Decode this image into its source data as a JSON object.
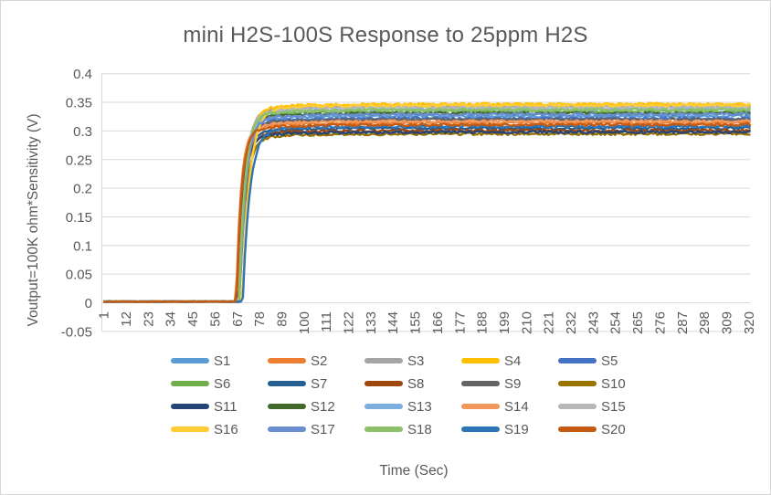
{
  "chart_data": {
    "type": "line",
    "title": "mini H2S-100S Response to 25ppm H2S",
    "xlabel": "Time (Sec)",
    "ylabel": "Voutput=100K ohm*Sensitivity (V)",
    "grid": true,
    "legend_position": "bottom",
    "n_points": 321,
    "x_axis": {
      "min": 1,
      "max": 320,
      "tick_step": 11,
      "ticks": [
        "1",
        "12",
        "23",
        "34",
        "45",
        "56",
        "67",
        "78",
        "89",
        "100",
        "111",
        "122",
        "133",
        "144",
        "155",
        "166",
        "177",
        "188",
        "199",
        "210",
        "221",
        "232",
        "243",
        "254",
        "265",
        "276",
        "287",
        "298",
        "309",
        "320"
      ]
    },
    "y_axis": {
      "min": -0.05,
      "max": 0.4,
      "tick_step": 0.05,
      "ticks": [
        {
          "v": 0.4,
          "label": "0.4"
        },
        {
          "v": 0.35,
          "label": "0.35"
        },
        {
          "v": 0.3,
          "label": "0.3"
        },
        {
          "v": 0.25,
          "label": "0.25"
        },
        {
          "v": 0.2,
          "label": "0.2"
        },
        {
          "v": 0.15,
          "label": "0.15"
        },
        {
          "v": 0.1,
          "label": "0.1"
        },
        {
          "v": 0.05,
          "label": "0.05"
        },
        {
          "v": 0,
          "label": "0"
        },
        {
          "v": -0.05,
          "label": "-0.05"
        }
      ]
    },
    "behavior": "All 20 sensors sit at ~0V from t=1 to ~67s, rise sharply at gas exposure (~67-70s) and plateau between ~0.295V and ~0.347V through t=320s",
    "series": [
      {
        "name": "S1",
        "color": "#5B9BD5",
        "baseline": 0.002,
        "onset": 67.4,
        "tau": 2.6,
        "plateau": 0.326
      },
      {
        "name": "S2",
        "color": "#ED7D31",
        "baseline": 0.002,
        "onset": 66.6,
        "tau": 2.4,
        "plateau": 0.314
      },
      {
        "name": "S3",
        "color": "#A5A5A5",
        "baseline": 0.002,
        "onset": 67.8,
        "tau": 3.0,
        "plateau": 0.343
      },
      {
        "name": "S4",
        "color": "#FFC000",
        "baseline": 0.002,
        "onset": 68.2,
        "tau": 3.2,
        "plateau": 0.347
      },
      {
        "name": "S5",
        "color": "#4472C4",
        "baseline": 0.002,
        "onset": 67.6,
        "tau": 2.8,
        "plateau": 0.322
      },
      {
        "name": "S6",
        "color": "#70AD47",
        "baseline": 0.002,
        "onset": 67.9,
        "tau": 2.9,
        "plateau": 0.334
      },
      {
        "name": "S7",
        "color": "#255E91",
        "baseline": 0.002,
        "onset": 67.5,
        "tau": 2.6,
        "plateau": 0.305
      },
      {
        "name": "S8",
        "color": "#9E480E",
        "baseline": 0.002,
        "onset": 67.8,
        "tau": 2.7,
        "plateau": 0.301
      },
      {
        "name": "S9",
        "color": "#636363",
        "baseline": 0.002,
        "onset": 68.0,
        "tau": 2.8,
        "plateau": 0.32
      },
      {
        "name": "S10",
        "color": "#997300",
        "baseline": 0.002,
        "onset": 68.3,
        "tau": 3.0,
        "plateau": 0.295
      },
      {
        "name": "S11",
        "color": "#264478",
        "baseline": 0.002,
        "onset": 67.6,
        "tau": 2.6,
        "plateau": 0.298
      },
      {
        "name": "S12",
        "color": "#43682B",
        "baseline": 0.002,
        "onset": 68.0,
        "tau": 2.9,
        "plateau": 0.331
      },
      {
        "name": "S13",
        "color": "#7CAFDD",
        "baseline": 0.002,
        "onset": 68.4,
        "tau": 3.1,
        "plateau": 0.338
      },
      {
        "name": "S14",
        "color": "#F1975A",
        "baseline": 0.002,
        "onset": 67.9,
        "tau": 2.8,
        "plateau": 0.317
      },
      {
        "name": "S15",
        "color": "#B7B7B7",
        "baseline": 0.002,
        "onset": 68.3,
        "tau": 3.0,
        "plateau": 0.341
      },
      {
        "name": "S16",
        "color": "#FFCD33",
        "baseline": 0.002,
        "onset": 69.6,
        "tau": 3.6,
        "plateau": 0.345
      },
      {
        "name": "S17",
        "color": "#698ED0",
        "baseline": 0.002,
        "onset": 68.4,
        "tau": 2.9,
        "plateau": 0.329
      },
      {
        "name": "S18",
        "color": "#8CC168",
        "baseline": 0.002,
        "onset": 68.1,
        "tau": 2.9,
        "plateau": 0.337
      },
      {
        "name": "S19",
        "color": "#2E75B6",
        "baseline": 0.002,
        "onset": 69.9,
        "tau": 3.4,
        "plateau": 0.308
      },
      {
        "name": "S20",
        "color": "#C55A11",
        "baseline": 0.002,
        "onset": 66.8,
        "tau": 2.5,
        "plateau": 0.311
      }
    ],
    "colors": {
      "gridline": "#D9D9D9",
      "axis_line": "#D9D9D9",
      "text": "#595959",
      "border": "#D6D6D6",
      "background": "#FFFFFF"
    }
  }
}
